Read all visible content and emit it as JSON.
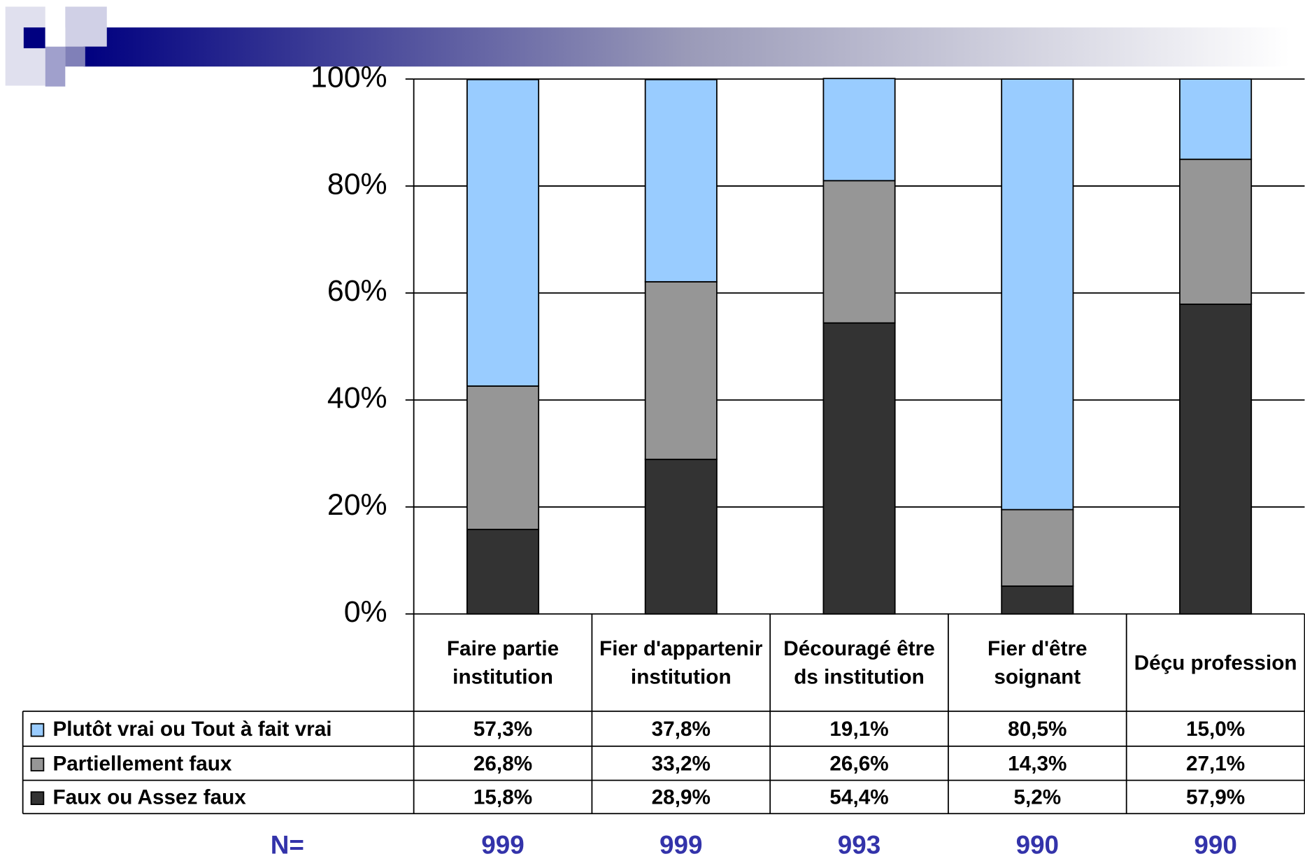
{
  "chart_data": {
    "type": "stacked_bar",
    "categories": [
      "Faire partie institution",
      "Fier d'appartenir institution",
      "Découragé être ds institution",
      "Fier d'être soignant",
      "Déçu profession"
    ],
    "series": [
      {
        "name": "Plutôt vrai ou Tout à fait vrai",
        "color": "#99ccff",
        "values": [
          57.3,
          37.8,
          19.1,
          80.5,
          15.0
        ],
        "value_labels": [
          "57,3%",
          "37,8%",
          "19,1%",
          "80,5%",
          "15,0%"
        ]
      },
      {
        "name": "Partiellement faux",
        "color": "#969696",
        "values": [
          26.8,
          33.2,
          26.6,
          14.3,
          27.1
        ],
        "value_labels": [
          "26,8%",
          "33,2%",
          "26,6%",
          "14,3%",
          "27,1%"
        ]
      },
      {
        "name": "Faux ou Assez faux",
        "color": "#333333",
        "values": [
          15.8,
          28.9,
          54.4,
          5.2,
          57.9
        ],
        "value_labels": [
          "15,8%",
          "28,9%",
          "54,4%",
          "5,2%",
          "57,9%"
        ]
      }
    ],
    "ylim": [
      0,
      100
    ],
    "yticks": [
      {
        "value": 0,
        "label": "0%"
      },
      {
        "value": 20,
        "label": "20%"
      },
      {
        "value": 40,
        "label": "40%"
      },
      {
        "value": 60,
        "label": "60%"
      },
      {
        "value": 80,
        "label": "80%"
      },
      {
        "value": 100,
        "label": "100%"
      }
    ],
    "grid": true,
    "n_label": "N=",
    "n_values": [
      999,
      999,
      993,
      990,
      990
    ]
  }
}
